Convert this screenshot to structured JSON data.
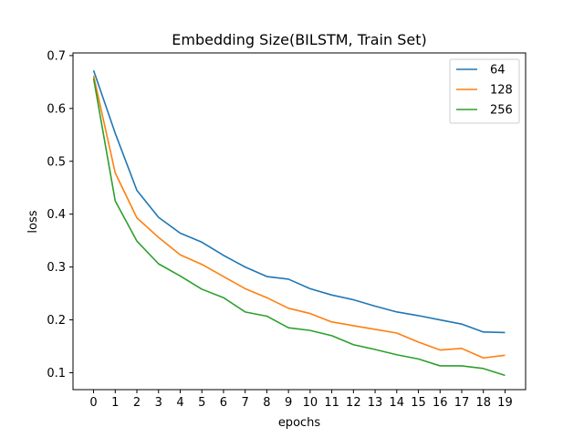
{
  "chart_data": {
    "type": "line",
    "title": "Embedding Size(BILSTM, Train Set)",
    "xlabel": "epochs",
    "ylabel": "loss",
    "x": [
      0,
      1,
      2,
      3,
      4,
      5,
      6,
      7,
      8,
      9,
      10,
      11,
      12,
      13,
      14,
      15,
      16,
      17,
      18,
      19
    ],
    "xlim": [
      -0.95,
      19.95
    ],
    "ylim": [
      0.068,
      0.705
    ],
    "yticks": [
      0.1,
      0.2,
      0.3,
      0.4,
      0.5,
      0.6,
      0.7
    ],
    "ytick_labels": [
      "0.1",
      "0.2",
      "0.3",
      "0.4",
      "0.5",
      "0.6",
      "0.7"
    ],
    "grid": false,
    "legend_position": "top-right",
    "series": [
      {
        "name": "64",
        "color": "#1f77b4",
        "values": [
          0.672,
          0.553,
          0.445,
          0.394,
          0.364,
          0.347,
          0.322,
          0.3,
          0.282,
          0.277,
          0.259,
          0.247,
          0.238,
          0.226,
          0.215,
          0.208,
          0.2,
          0.192,
          0.177,
          0.176
        ]
      },
      {
        "name": "128",
        "color": "#ff7f0e",
        "values": [
          0.662,
          0.478,
          0.393,
          0.356,
          0.323,
          0.305,
          0.282,
          0.259,
          0.242,
          0.222,
          0.212,
          0.196,
          0.189,
          0.182,
          0.175,
          0.158,
          0.143,
          0.146,
          0.128,
          0.133
        ]
      },
      {
        "name": "256",
        "color": "#2ca02c",
        "values": [
          0.657,
          0.425,
          0.349,
          0.306,
          0.283,
          0.258,
          0.242,
          0.215,
          0.207,
          0.185,
          0.18,
          0.17,
          0.153,
          0.144,
          0.134,
          0.126,
          0.113,
          0.113,
          0.108,
          0.095
        ]
      }
    ]
  }
}
